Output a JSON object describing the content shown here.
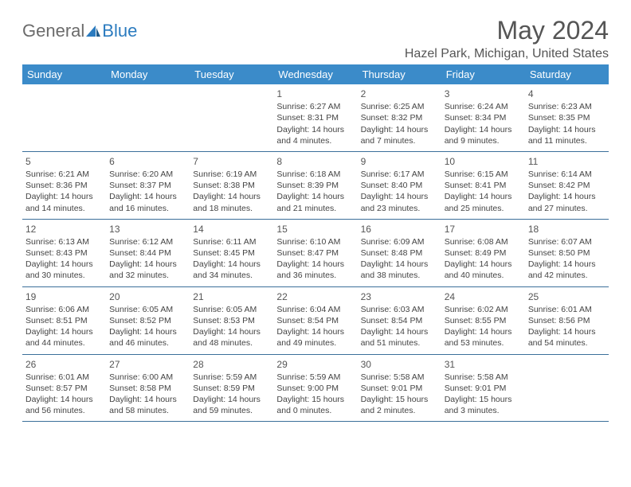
{
  "logo": {
    "general": "General",
    "blue": "Blue"
  },
  "title": "May 2024",
  "location": "Hazel Park, Michigan, United States",
  "colors": {
    "header_bg": "#3b8bc9",
    "header_text": "#ffffff",
    "rule": "#3b6f9a",
    "body_text": "#444444",
    "title_text": "#555555",
    "logo_gray": "#6b6b6b",
    "logo_blue": "#2b7bbf",
    "page_bg": "#ffffff"
  },
  "typography": {
    "title_fontsize": 32,
    "location_fontsize": 16,
    "dow_fontsize": 13,
    "daynum_fontsize": 12,
    "cell_fontsize": 10.5
  },
  "days_of_week": [
    "Sunday",
    "Monday",
    "Tuesday",
    "Wednesday",
    "Thursday",
    "Friday",
    "Saturday"
  ],
  "weeks": [
    [
      null,
      null,
      null,
      {
        "n": "1",
        "sr": "Sunrise: 6:27 AM",
        "ss": "Sunset: 8:31 PM",
        "d1": "Daylight: 14 hours",
        "d2": "and 4 minutes."
      },
      {
        "n": "2",
        "sr": "Sunrise: 6:25 AM",
        "ss": "Sunset: 8:32 PM",
        "d1": "Daylight: 14 hours",
        "d2": "and 7 minutes."
      },
      {
        "n": "3",
        "sr": "Sunrise: 6:24 AM",
        "ss": "Sunset: 8:34 PM",
        "d1": "Daylight: 14 hours",
        "d2": "and 9 minutes."
      },
      {
        "n": "4",
        "sr": "Sunrise: 6:23 AM",
        "ss": "Sunset: 8:35 PM",
        "d1": "Daylight: 14 hours",
        "d2": "and 11 minutes."
      }
    ],
    [
      {
        "n": "5",
        "sr": "Sunrise: 6:21 AM",
        "ss": "Sunset: 8:36 PM",
        "d1": "Daylight: 14 hours",
        "d2": "and 14 minutes."
      },
      {
        "n": "6",
        "sr": "Sunrise: 6:20 AM",
        "ss": "Sunset: 8:37 PM",
        "d1": "Daylight: 14 hours",
        "d2": "and 16 minutes."
      },
      {
        "n": "7",
        "sr": "Sunrise: 6:19 AM",
        "ss": "Sunset: 8:38 PM",
        "d1": "Daylight: 14 hours",
        "d2": "and 18 minutes."
      },
      {
        "n": "8",
        "sr": "Sunrise: 6:18 AM",
        "ss": "Sunset: 8:39 PM",
        "d1": "Daylight: 14 hours",
        "d2": "and 21 minutes."
      },
      {
        "n": "9",
        "sr": "Sunrise: 6:17 AM",
        "ss": "Sunset: 8:40 PM",
        "d1": "Daylight: 14 hours",
        "d2": "and 23 minutes."
      },
      {
        "n": "10",
        "sr": "Sunrise: 6:15 AM",
        "ss": "Sunset: 8:41 PM",
        "d1": "Daylight: 14 hours",
        "d2": "and 25 minutes."
      },
      {
        "n": "11",
        "sr": "Sunrise: 6:14 AM",
        "ss": "Sunset: 8:42 PM",
        "d1": "Daylight: 14 hours",
        "d2": "and 27 minutes."
      }
    ],
    [
      {
        "n": "12",
        "sr": "Sunrise: 6:13 AM",
        "ss": "Sunset: 8:43 PM",
        "d1": "Daylight: 14 hours",
        "d2": "and 30 minutes."
      },
      {
        "n": "13",
        "sr": "Sunrise: 6:12 AM",
        "ss": "Sunset: 8:44 PM",
        "d1": "Daylight: 14 hours",
        "d2": "and 32 minutes."
      },
      {
        "n": "14",
        "sr": "Sunrise: 6:11 AM",
        "ss": "Sunset: 8:45 PM",
        "d1": "Daylight: 14 hours",
        "d2": "and 34 minutes."
      },
      {
        "n": "15",
        "sr": "Sunrise: 6:10 AM",
        "ss": "Sunset: 8:47 PM",
        "d1": "Daylight: 14 hours",
        "d2": "and 36 minutes."
      },
      {
        "n": "16",
        "sr": "Sunrise: 6:09 AM",
        "ss": "Sunset: 8:48 PM",
        "d1": "Daylight: 14 hours",
        "d2": "and 38 minutes."
      },
      {
        "n": "17",
        "sr": "Sunrise: 6:08 AM",
        "ss": "Sunset: 8:49 PM",
        "d1": "Daylight: 14 hours",
        "d2": "and 40 minutes."
      },
      {
        "n": "18",
        "sr": "Sunrise: 6:07 AM",
        "ss": "Sunset: 8:50 PM",
        "d1": "Daylight: 14 hours",
        "d2": "and 42 minutes."
      }
    ],
    [
      {
        "n": "19",
        "sr": "Sunrise: 6:06 AM",
        "ss": "Sunset: 8:51 PM",
        "d1": "Daylight: 14 hours",
        "d2": "and 44 minutes."
      },
      {
        "n": "20",
        "sr": "Sunrise: 6:05 AM",
        "ss": "Sunset: 8:52 PM",
        "d1": "Daylight: 14 hours",
        "d2": "and 46 minutes."
      },
      {
        "n": "21",
        "sr": "Sunrise: 6:05 AM",
        "ss": "Sunset: 8:53 PM",
        "d1": "Daylight: 14 hours",
        "d2": "and 48 minutes."
      },
      {
        "n": "22",
        "sr": "Sunrise: 6:04 AM",
        "ss": "Sunset: 8:54 PM",
        "d1": "Daylight: 14 hours",
        "d2": "and 49 minutes."
      },
      {
        "n": "23",
        "sr": "Sunrise: 6:03 AM",
        "ss": "Sunset: 8:54 PM",
        "d1": "Daylight: 14 hours",
        "d2": "and 51 minutes."
      },
      {
        "n": "24",
        "sr": "Sunrise: 6:02 AM",
        "ss": "Sunset: 8:55 PM",
        "d1": "Daylight: 14 hours",
        "d2": "and 53 minutes."
      },
      {
        "n": "25",
        "sr": "Sunrise: 6:01 AM",
        "ss": "Sunset: 8:56 PM",
        "d1": "Daylight: 14 hours",
        "d2": "and 54 minutes."
      }
    ],
    [
      {
        "n": "26",
        "sr": "Sunrise: 6:01 AM",
        "ss": "Sunset: 8:57 PM",
        "d1": "Daylight: 14 hours",
        "d2": "and 56 minutes."
      },
      {
        "n": "27",
        "sr": "Sunrise: 6:00 AM",
        "ss": "Sunset: 8:58 PM",
        "d1": "Daylight: 14 hours",
        "d2": "and 58 minutes."
      },
      {
        "n": "28",
        "sr": "Sunrise: 5:59 AM",
        "ss": "Sunset: 8:59 PM",
        "d1": "Daylight: 14 hours",
        "d2": "and 59 minutes."
      },
      {
        "n": "29",
        "sr": "Sunrise: 5:59 AM",
        "ss": "Sunset: 9:00 PM",
        "d1": "Daylight: 15 hours",
        "d2": "and 0 minutes."
      },
      {
        "n": "30",
        "sr": "Sunrise: 5:58 AM",
        "ss": "Sunset: 9:01 PM",
        "d1": "Daylight: 15 hours",
        "d2": "and 2 minutes."
      },
      {
        "n": "31",
        "sr": "Sunrise: 5:58 AM",
        "ss": "Sunset: 9:01 PM",
        "d1": "Daylight: 15 hours",
        "d2": "and 3 minutes."
      },
      null
    ]
  ]
}
